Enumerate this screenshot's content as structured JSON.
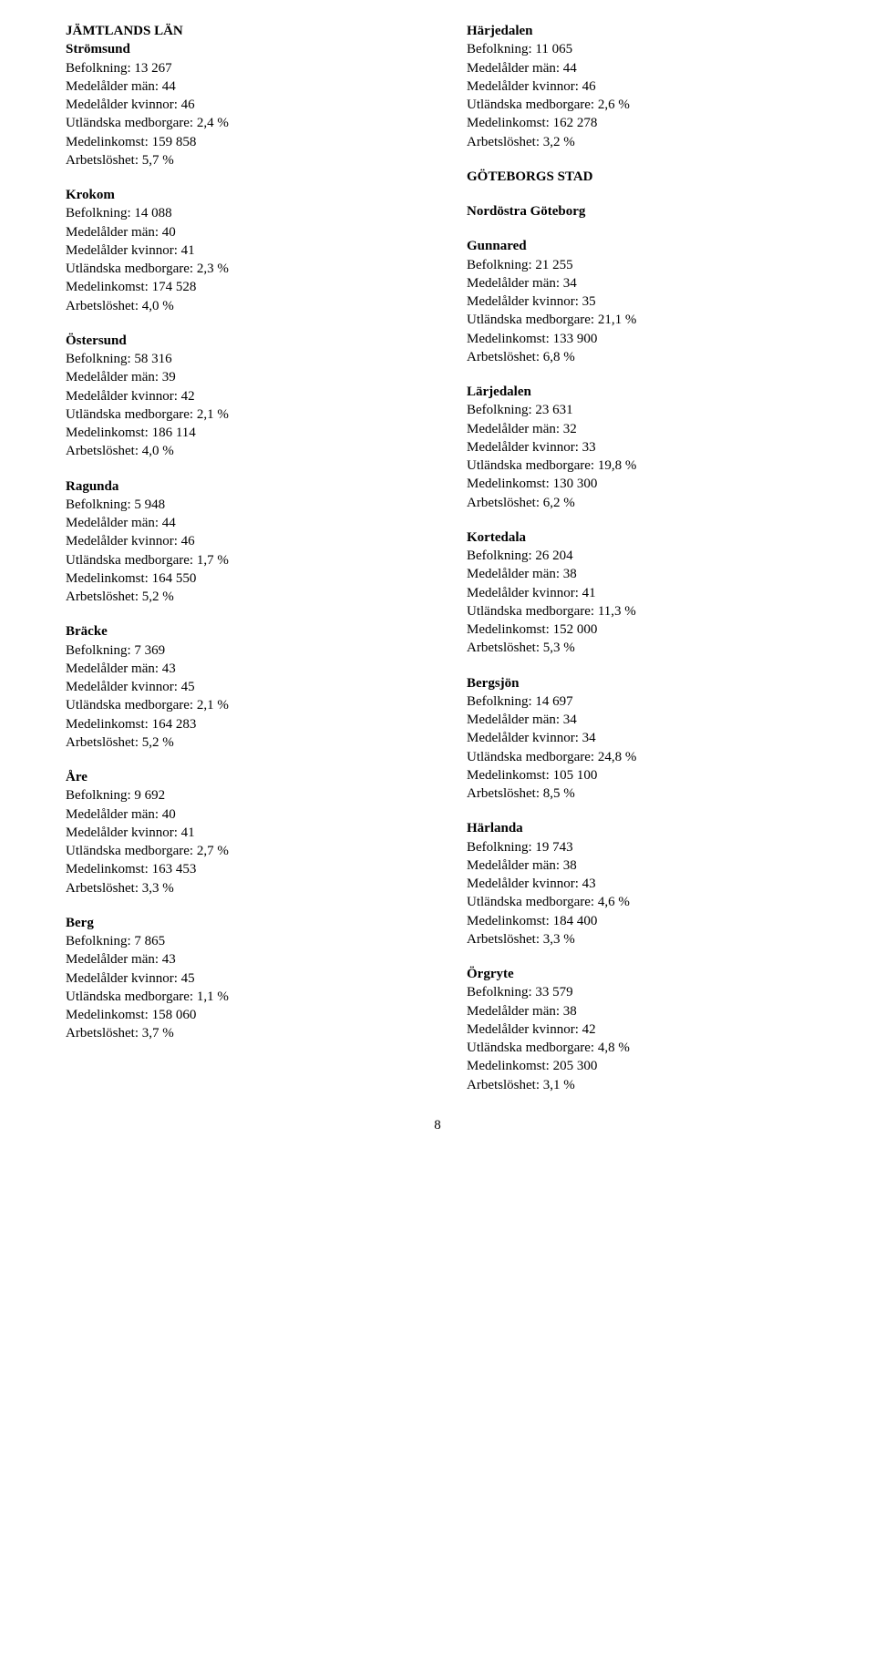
{
  "labels": {
    "befolkning": "Befolkning:",
    "man": "Medelålder män:",
    "kvinnor": "Medelålder kvinnor:",
    "utl": "Utländska medborgare:",
    "inkomst": "Medelinkomst:",
    "arbets": "Arbetslöshet:"
  },
  "left": {
    "county": "JÄMTLANDS LÄN",
    "blocks": [
      {
        "name": "Strömsund",
        "befolkning": "13 267",
        "man": "44",
        "kvinnor": "46",
        "utl": "2,4 %",
        "inkomst": "159 858",
        "arbets": "5,7 %"
      },
      {
        "name": "Krokom",
        "befolkning": "14 088",
        "man": "40",
        "kvinnor": "41",
        "utl": "2,3 %",
        "inkomst": "174 528",
        "arbets": "4,0 %"
      },
      {
        "name": "Östersund",
        "befolkning": "58 316",
        "man": "39",
        "kvinnor": "42",
        "utl": "2,1 %",
        "inkomst": "186 114",
        "arbets": "4,0 %"
      },
      {
        "name": "Ragunda",
        "befolkning": "5 948",
        "man": "44",
        "kvinnor": "46",
        "utl": "1,7 %",
        "inkomst": "164 550",
        "arbets": "5,2 %"
      },
      {
        "name": "Bräcke",
        "befolkning": "7 369",
        "man": "43",
        "kvinnor": "45",
        "utl": "2,1 %",
        "inkomst": "164 283",
        "arbets": "5,2 %"
      },
      {
        "name": "Åre",
        "befolkning": "9 692",
        "man": "40",
        "kvinnor": "41",
        "utl": "2,7 %",
        "inkomst": "163 453",
        "arbets": "3,3 %"
      },
      {
        "name": "Berg",
        "befolkning": "7 865",
        "man": "43",
        "kvinnor": "45",
        "utl": "1,1 %",
        "inkomst": "158 060",
        "arbets": "3,7 %"
      }
    ]
  },
  "right": {
    "top_block": {
      "name": "Härjedalen",
      "befolkning": "11 065",
      "man": "44",
      "kvinnor": "46",
      "utl": "2,6 %",
      "inkomst": "162 278",
      "arbets": "3,2 %"
    },
    "section_heading": "GÖTEBORGS STAD",
    "subheading": "Nordöstra Göteborg",
    "blocks": [
      {
        "name": "Gunnared",
        "befolkning": "21 255",
        "man": "34",
        "kvinnor": "35",
        "utl": "21,1 %",
        "inkomst": "133 900",
        "arbets": "6,8 %"
      },
      {
        "name": "Lärjedalen",
        "befolkning": "23 631",
        "man": "32",
        "kvinnor": "33",
        "utl": "19,8 %",
        "inkomst": "130 300",
        "arbets": "6,2 %"
      },
      {
        "name": "Kortedala",
        "befolkning": "26 204",
        "man": "38",
        "kvinnor": "41",
        "utl": "11,3 %",
        "inkomst": "152 000",
        "arbets": "5,3 %"
      },
      {
        "name": "Bergsjön",
        "befolkning": "14 697",
        "man": "34",
        "kvinnor": "34",
        "utl": "24,8 %",
        "inkomst": "105 100",
        "arbets": "8,5 %"
      },
      {
        "name": "Härlanda",
        "befolkning": "19 743",
        "man": "38",
        "kvinnor": "43",
        "utl": "4,6 %",
        "inkomst": "184 400",
        "arbets": "3,3 %"
      },
      {
        "name": "Örgryte",
        "befolkning": "33 579",
        "man": "38",
        "kvinnor": "42",
        "utl": "4,8 %",
        "inkomst": "205 300",
        "arbets": "3,1 %"
      }
    ]
  },
  "page_number": "8",
  "style": {
    "font_family": "Times New Roman",
    "font_size_pt": 12,
    "text_color": "#000000",
    "background_color": "#ffffff"
  }
}
